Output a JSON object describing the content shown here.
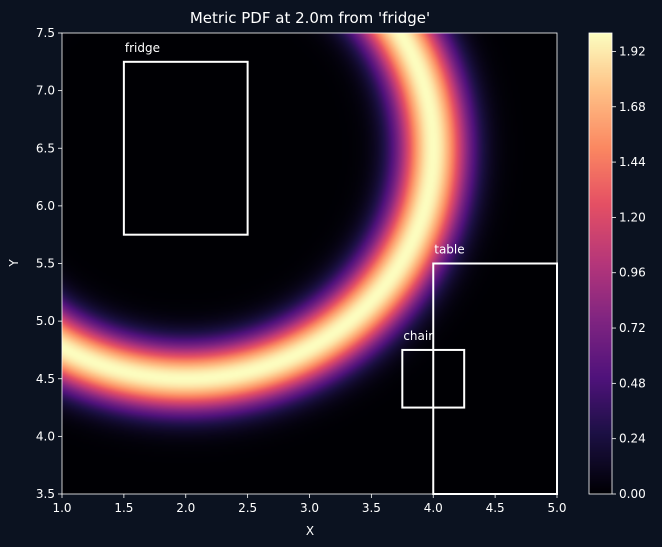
{
  "colors": {
    "figure_bg": "#0b1220",
    "axis_text": "#ffffff",
    "box_stroke": "#ffffff",
    "colormap": "magma"
  },
  "chart_data": {
    "type": "heatmap",
    "title": "Metric PDF at 2.0m from 'fridge'",
    "xlabel": "X",
    "ylabel": "Y",
    "xlim": [
      1.0,
      5.0
    ],
    "ylim": [
      3.5,
      7.5
    ],
    "xticks": [
      "1.0",
      "1.5",
      "2.0",
      "2.5",
      "3.0",
      "3.5",
      "4.0",
      "4.5",
      "5.0"
    ],
    "yticks": [
      "3.5",
      "4.0",
      "4.5",
      "5.0",
      "5.5",
      "6.0",
      "6.5",
      "7.0",
      "7.5"
    ],
    "field": {
      "description_of_ring": "density peaks on a ring of radius 2.0 around fridge center",
      "center": [
        2.0,
        6.5
      ],
      "radius": 2.0,
      "peak": 2.0,
      "sigma": 0.2
    },
    "colorbar": {
      "min": 0.0,
      "max": 2.0,
      "ticks": [
        "0.00",
        "0.24",
        "0.48",
        "0.72",
        "0.96",
        "1.20",
        "1.44",
        "1.68",
        "1.92"
      ]
    },
    "objects": [
      {
        "label": "fridge",
        "x0": 1.5,
        "x1": 2.5,
        "y0": 5.75,
        "y1": 7.25
      },
      {
        "label": "table",
        "x0": 4.0,
        "x1": 5.0,
        "y0": 3.5,
        "y1": 5.5
      },
      {
        "label": "chair",
        "x0": 3.75,
        "x1": 4.25,
        "y0": 4.25,
        "y1": 4.75
      }
    ]
  }
}
